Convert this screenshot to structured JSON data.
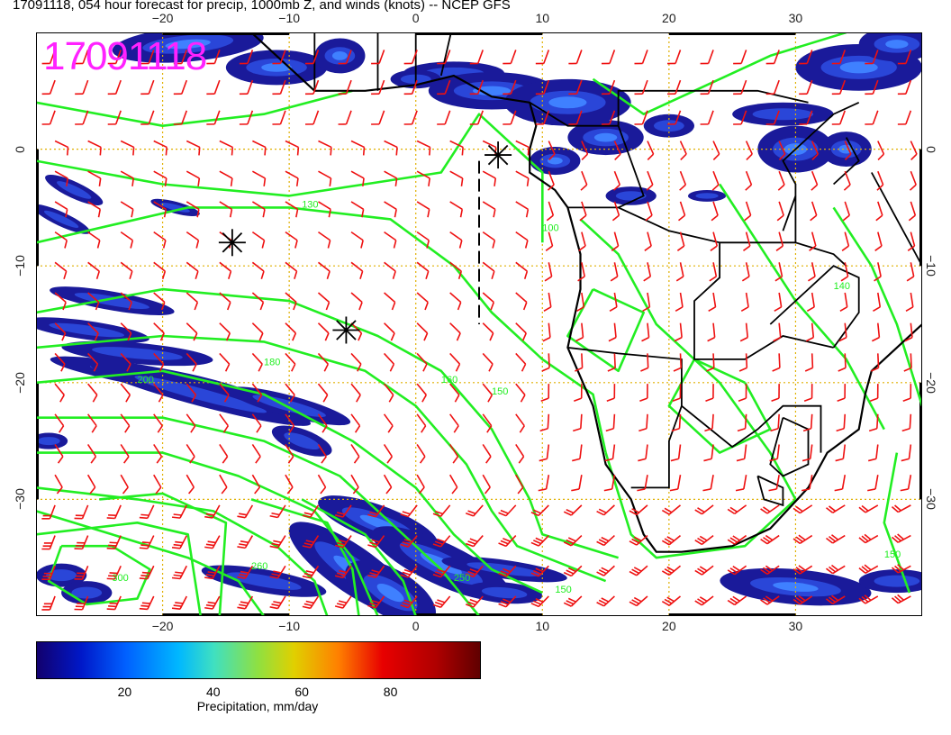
{
  "title": "17091118, 054 hour forecast for precip, 1000mb Z, and winds (knots) -- NCEP GFS",
  "stamp": "17091118",
  "map": {
    "lon_range": [
      -30,
      40
    ],
    "lat_range": [
      -40,
      10
    ],
    "lon_ticks": [
      -20,
      -10,
      0,
      10,
      20,
      30
    ],
    "lat_ticks": [
      0,
      -10,
      -20,
      -30
    ],
    "lon_tick_labels": [
      "−20",
      "−10",
      "0",
      "10",
      "20",
      "30"
    ],
    "lat_tick_labels": [
      "0",
      "−10",
      "−20",
      "−30"
    ],
    "grid": true,
    "grid_color": "#e0b000",
    "contour_color": "#22ee22",
    "barb_color": "#ee1111",
    "coast_color": "#000000",
    "markers": [
      {
        "lon": 6.5,
        "lat": -0.5
      },
      {
        "lon": -14.5,
        "lat": -8
      },
      {
        "lon": -5.5,
        "lat": -15.5
      }
    ],
    "contour_labels": [
      {
        "lon": -9,
        "lat": -5,
        "text": "130"
      },
      {
        "lon": -12,
        "lat": -18.5,
        "text": "180"
      },
      {
        "lon": -22,
        "lat": -20,
        "text": "200"
      },
      {
        "lon": 2,
        "lat": -20,
        "text": "160"
      },
      {
        "lon": 6,
        "lat": -21,
        "text": "150"
      },
      {
        "lon": -24,
        "lat": -37,
        "text": "300"
      },
      {
        "lon": -13,
        "lat": -36,
        "text": "260"
      },
      {
        "lon": 3,
        "lat": -37,
        "text": "250"
      },
      {
        "lon": 11,
        "lat": -38,
        "text": "150"
      },
      {
        "lon": 10,
        "lat": -7,
        "text": "100"
      },
      {
        "lon": 33,
        "lat": -12,
        "text": "140"
      },
      {
        "lon": 37,
        "lat": -35,
        "text": "150"
      }
    ],
    "precip_colors": [
      "#1a1a9a",
      "#2a46d8",
      "#3f80ff",
      "#79b8ff"
    ]
  },
  "colorbar": {
    "label": "Precipitation, mm/day",
    "range": [
      0,
      100
    ],
    "ticks": [
      20,
      40,
      60,
      80
    ],
    "tick_labels": [
      "20",
      "40",
      "60",
      "80"
    ]
  }
}
